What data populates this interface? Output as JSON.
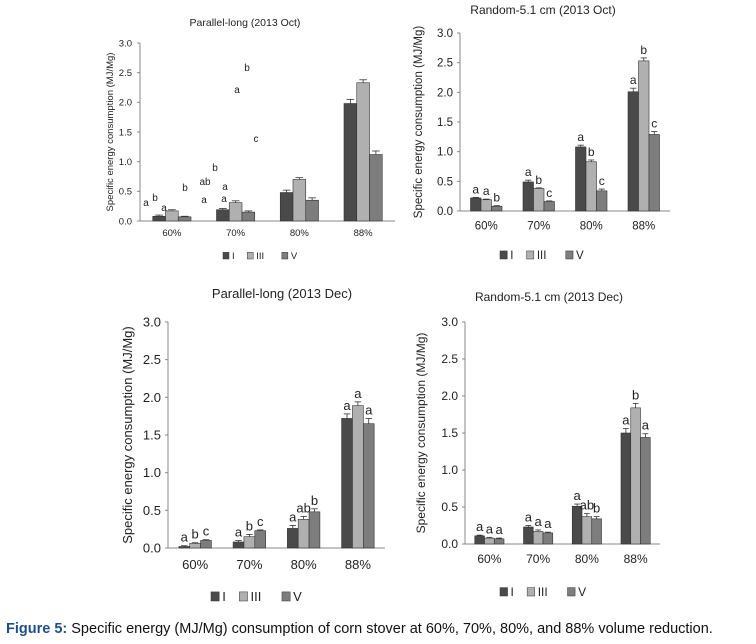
{
  "charts": [
    {
      "type": "bar",
      "title": "Parallel-long (2013 Oct)",
      "xlabel": "",
      "ylabel": "Specific energy consumption (MJ/Mg)",
      "ylim": [
        0,
        3.0
      ],
      "yticks": [
        "0.0",
        "0.5",
        "1.0",
        "1.5",
        "2.0",
        "2.5",
        "3.0"
      ],
      "categories": [
        "60%",
        "70%",
        "80%",
        "88%"
      ],
      "legend": [
        "I",
        "III",
        "V"
      ],
      "legend_position": "bottom",
      "series": [
        {
          "name": "I",
          "values": [
            0.08,
            0.19,
            0.48,
            1.98
          ],
          "errors": [
            0.02,
            0.02,
            0.04,
            0.07
          ]
        },
        {
          "name": "III",
          "values": [
            0.17,
            0.31,
            0.7,
            2.33
          ],
          "errors": [
            0.02,
            0.03,
            0.03,
            0.05
          ]
        },
        {
          "name": "V",
          "values": [
            0.07,
            0.15,
            0.35,
            1.12
          ],
          "errors": [
            0.01,
            0.02,
            0.04,
            0.06
          ]
        }
      ],
      "letters": [
        "a",
        "b",
        "a",
        "b",
        "a",
        "a",
        "ab",
        "b",
        "a",
        "a",
        "b",
        "c"
      ],
      "grid": false
    },
    {
      "type": "bar",
      "title": "Random-5.1 cm (2013 Oct)",
      "xlabel": "",
      "ylabel": "Specific energy consumption (MJ/Mg)",
      "ylim": [
        0,
        3.0
      ],
      "yticks": [
        "0.0",
        "0.5",
        "1.0",
        "1.5",
        "2.0",
        "2.5",
        "3.0"
      ],
      "categories": [
        "60%",
        "70%",
        "80%",
        "88%"
      ],
      "legend": [
        "I",
        "III",
        "V"
      ],
      "legend_position": "bottom",
      "series": [
        {
          "name": "I",
          "values": [
            0.22,
            0.49,
            1.08,
            2.01
          ],
          "errors": [
            0.01,
            0.03,
            0.03,
            0.06
          ]
        },
        {
          "name": "III",
          "values": [
            0.19,
            0.38,
            0.83,
            2.53
          ],
          "errors": [
            0.01,
            0.01,
            0.03,
            0.05
          ]
        },
        {
          "name": "V",
          "values": [
            0.08,
            0.16,
            0.34,
            1.29
          ],
          "errors": [
            0.01,
            0.01,
            0.03,
            0.05
          ]
        }
      ],
      "letters": [
        [
          "a",
          "a",
          "b"
        ],
        [
          "a",
          "b",
          "c"
        ],
        [
          "a",
          "b",
          "c"
        ],
        [
          "a",
          "b",
          "c"
        ]
      ],
      "grid": false
    },
    {
      "type": "bar",
      "title": "Parallel-long (2013 Dec)",
      "xlabel": "",
      "ylabel": "Specific energy consumption (MJ/Mg)",
      "ylim": [
        0,
        3.0
      ],
      "yticks": [
        "0.0",
        "0.5",
        "1.0",
        "1.5",
        "2.0",
        "2.5",
        "3.0"
      ],
      "categories": [
        "60%",
        "70%",
        "80%",
        "88%"
      ],
      "legend": [
        "I",
        "III",
        "V"
      ],
      "legend_position": "bottom",
      "series": [
        {
          "name": "I",
          "values": [
            0.02,
            0.08,
            0.26,
            1.72
          ],
          "errors": [
            0.01,
            0.02,
            0.04,
            0.06
          ]
        },
        {
          "name": "III",
          "values": [
            0.06,
            0.15,
            0.38,
            1.89
          ],
          "errors": [
            0.01,
            0.03,
            0.04,
            0.05
          ]
        },
        {
          "name": "V",
          "values": [
            0.1,
            0.23,
            0.48,
            1.65
          ],
          "errors": [
            0.01,
            0.01,
            0.04,
            0.07
          ]
        }
      ],
      "letters": [
        [
          "a",
          "b",
          "c"
        ],
        [
          "a",
          "b",
          "c"
        ],
        [
          "a",
          "ab",
          "b"
        ],
        [
          "a",
          "a",
          "a"
        ]
      ],
      "grid": false
    },
    {
      "type": "bar",
      "title": "Random-5.1 cm (2013 Dec)",
      "xlabel": "",
      "ylabel": "Specific energy consumption (MJ/Mg)",
      "ylim": [
        0,
        3.0
      ],
      "yticks": [
        "0.0",
        "0.5",
        "1.0",
        "1.5",
        "2.0",
        "2.5",
        "3.0"
      ],
      "categories": [
        "60%",
        "70%",
        "80%",
        "88%"
      ],
      "legend": [
        "I",
        "III",
        "V"
      ],
      "legend_position": "bottom",
      "series": [
        {
          "name": "I",
          "values": [
            0.11,
            0.23,
            0.51,
            1.5
          ],
          "errors": [
            0.01,
            0.02,
            0.03,
            0.06
          ]
        },
        {
          "name": "III",
          "values": [
            0.08,
            0.17,
            0.37,
            1.84
          ],
          "errors": [
            0.01,
            0.02,
            0.04,
            0.06
          ]
        },
        {
          "name": "V",
          "values": [
            0.07,
            0.15,
            0.34,
            1.44
          ],
          "errors": [
            0.01,
            0.01,
            0.03,
            0.05
          ]
        }
      ],
      "letters": [
        [
          "a",
          "a",
          "a"
        ],
        [
          "a",
          "a",
          "a"
        ],
        [
          "a",
          "ab",
          "b"
        ],
        [
          "a",
          "b",
          "a"
        ]
      ],
      "grid": false
    }
  ],
  "series_colors": [
    "#4a4a4a",
    "#b0b0b0",
    "#7d7d7d"
  ],
  "caption": {
    "label": "Figure 5:",
    "text": " Specific energy (MJ/Mg) consumption of corn stover at 60%, 70%, 80%, and 88% volume reduction."
  }
}
